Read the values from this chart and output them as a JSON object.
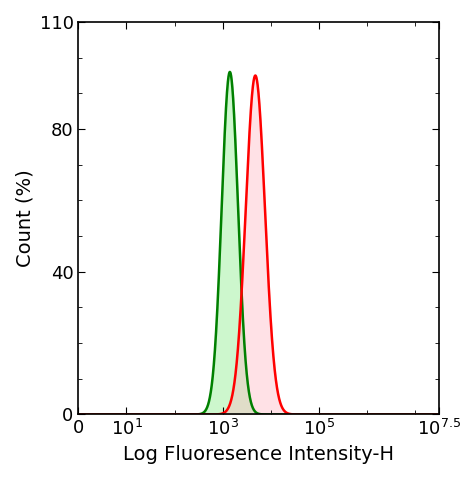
{
  "title": "",
  "xlabel": "Log Fluoresence Intensity-H",
  "ylabel": "Count (%)",
  "xlim_log": [
    0,
    7.5
  ],
  "ylim": [
    0,
    110
  ],
  "yticks": [
    0,
    40,
    80
  ],
  "ytick_top": 110,
  "xtick_pos_used": [
    0,
    1,
    3,
    5,
    7.5
  ],
  "xtick_labels_used": [
    "0",
    "$10^1$",
    "$10^3$",
    "$10^5$",
    "$10^{7.5}$"
  ],
  "green_peak_log": 3.15,
  "green_sigma_log": 0.17,
  "green_amplitude": 96,
  "red_peak_log": 3.68,
  "red_sigma_log": 0.2,
  "red_amplitude": 95,
  "green_color": "#008000",
  "green_fill": "#90EE90",
  "red_color": "#FF0000",
  "red_fill": "#FFB6C1",
  "green_fill_alpha": 0.45,
  "red_fill_alpha": 0.4,
  "background_color": "#ffffff",
  "xlabel_fontsize": 14,
  "ylabel_fontsize": 14,
  "tick_fontsize": 13,
  "linewidth": 1.8
}
